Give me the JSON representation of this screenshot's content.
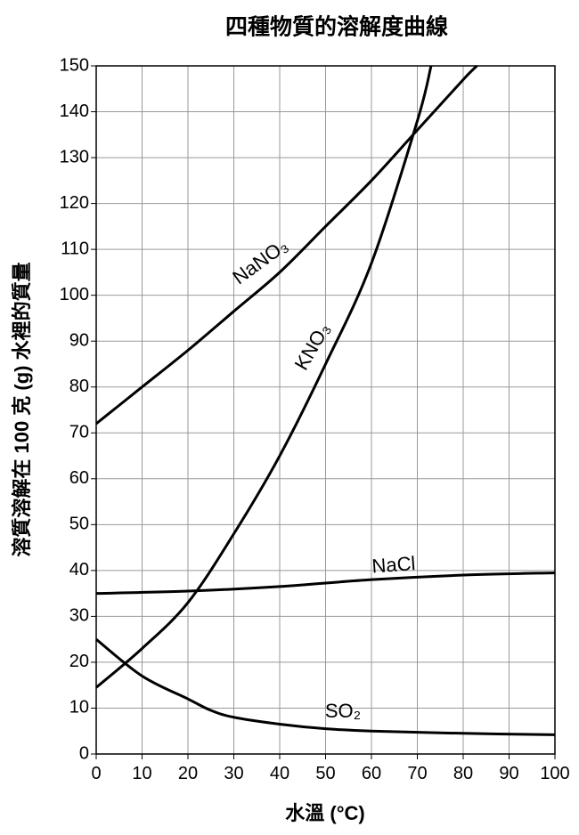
{
  "chart_data": {
    "type": "line",
    "title": "四種物質的溶解度曲線",
    "x_label": "水溫 (°C)",
    "y_label": "溶質溶解在 100 克 (g) 水裡的質量",
    "xlim": [
      0,
      100
    ],
    "xticks": [
      0,
      10,
      20,
      30,
      40,
      50,
      60,
      70,
      80,
      90,
      100
    ],
    "ylim": [
      0,
      150
    ],
    "yticks": [
      0,
      10,
      20,
      30,
      40,
      50,
      60,
      70,
      80,
      90,
      100,
      110,
      120,
      130,
      140,
      150
    ],
    "grid": true,
    "series": [
      {
        "name": "NaNO₃",
        "color": "#000000",
        "x": [
          0,
          10,
          20,
          30,
          40,
          50,
          60,
          70,
          80,
          83
        ],
        "values": [
          72,
          80,
          88,
          96.5,
          105,
          115,
          125,
          136,
          147,
          150
        ]
      },
      {
        "name": "KNO₃",
        "color": "#000000",
        "x": [
          0,
          10,
          20,
          30,
          40,
          50,
          60,
          70,
          73
        ],
        "values": [
          14.5,
          23,
          33,
          48,
          65,
          85,
          107,
          138,
          150
        ]
      },
      {
        "name": "NaCl",
        "color": "#000000",
        "x": [
          0,
          20,
          40,
          60,
          80,
          100
        ],
        "values": [
          35,
          35.5,
          36.5,
          38,
          39,
          39.5
        ]
      },
      {
        "name": "SO₂",
        "color": "#000000",
        "x": [
          0,
          10,
          20,
          25,
          30,
          40,
          50,
          60,
          80,
          100
        ],
        "values": [
          25,
          17,
          12,
          9.5,
          8,
          6.5,
          5.5,
          5,
          4.5,
          4.2
        ]
      }
    ]
  }
}
